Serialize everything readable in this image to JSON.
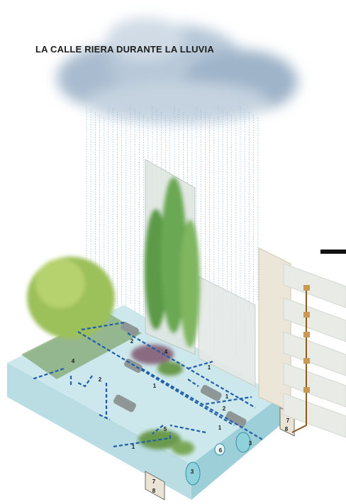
{
  "title": "LA CALLE RIERA DURANTE LA LLUVIA",
  "markers": [
    "2",
    "4",
    "1",
    "4",
    "2",
    "1",
    "1",
    "2",
    "1",
    "3",
    "5",
    "1",
    "6",
    "3",
    "7",
    "8",
    "7",
    "8"
  ]
}
